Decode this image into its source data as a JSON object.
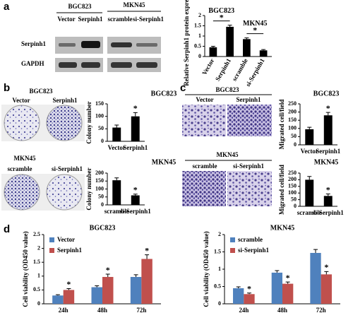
{
  "panel_labels": [
    "a",
    "b",
    "c",
    "d"
  ],
  "blot": {
    "groups": [
      {
        "title": "BGC823",
        "lanes": [
          "Vector",
          "Serpinh1"
        ]
      },
      {
        "title": "MKN45",
        "lanes": [
          "scramble",
          "si-Serpinh1"
        ]
      }
    ],
    "rows": [
      "Serpinh1",
      "GAPDH"
    ]
  },
  "colony": {
    "groups": [
      {
        "title": "BGC823",
        "lanes": [
          "Vector",
          "Serpinh1"
        ]
      },
      {
        "title": "MKN45",
        "lanes": [
          "scramble",
          "si-Serpinh1"
        ]
      }
    ]
  },
  "migration": {
    "groups": [
      {
        "title": "BGC823",
        "lanes": [
          "Vector",
          "Serpinh1"
        ]
      },
      {
        "title": "MKN45",
        "lanes": [
          "scramble",
          "si-Serpinh1"
        ]
      }
    ]
  },
  "chart_data": [
    {
      "type": "bar",
      "y_label": "Relative Serpinh1 protein expression",
      "categories": [
        "Vector",
        "Serpinh1",
        "scramble",
        "si-Serpinh1"
      ],
      "values": [
        0.45,
        1.45,
        0.85,
        0.3
      ],
      "errors": [
        0.05,
        0.08,
        0.06,
        0.04
      ],
      "color": "#000000",
      "ylim": [
        0,
        2
      ],
      "yticks": [
        0,
        0.5,
        1,
        1.5,
        2
      ],
      "group_labels": [
        {
          "text": "BGC823",
          "indices": [
            0,
            1
          ]
        },
        {
          "text": "MKN45",
          "indices": [
            2,
            3
          ]
        }
      ],
      "annotations": [
        {
          "text": "*",
          "indices": [
            0,
            1
          ]
        },
        {
          "text": "*",
          "indices": [
            2,
            3
          ]
        }
      ]
    },
    {
      "type": "bar",
      "title": "BGC823",
      "y_label": "Colony number",
      "categories": [
        "Vector",
        "Serpinh1"
      ],
      "values": [
        55,
        100
      ],
      "errors": [
        10,
        15
      ],
      "color": "#000000",
      "ylim": [
        0,
        150
      ],
      "yticks": [
        0,
        50,
        100,
        150
      ],
      "annotations": [
        {
          "text": "*",
          "index": 1
        }
      ]
    },
    {
      "type": "bar",
      "title": "MKN45",
      "y_label": "Colony number",
      "categories": [
        "scramble",
        "si-Serpinh1"
      ],
      "values": [
        155,
        60
      ],
      "errors": [
        15,
        8
      ],
      "color": "#000000",
      "ylim": [
        0,
        200
      ],
      "yticks": [
        0,
        50,
        100,
        150,
        200
      ],
      "annotations": [
        {
          "text": "*",
          "index": 1
        }
      ]
    },
    {
      "type": "bar",
      "title": "BGC823",
      "y_label": "Migrated cell/field",
      "categories": [
        "Vector",
        "Serpinh1"
      ],
      "values": [
        95,
        180
      ],
      "errors": [
        12,
        18
      ],
      "color": "#000000",
      "ylim": [
        0,
        250
      ],
      "yticks": [
        0,
        50,
        100,
        150,
        200,
        250
      ],
      "annotations": [
        {
          "text": "*",
          "index": 1
        }
      ]
    },
    {
      "type": "bar",
      "title": "MKN45",
      "y_label": "Migrated cell/field",
      "categories": [
        "scramble",
        "si-Serpinh1"
      ],
      "values": [
        200,
        78
      ],
      "errors": [
        25,
        15
      ],
      "color": "#000000",
      "ylim": [
        0,
        250
      ],
      "yticks": [
        0,
        50,
        100,
        150,
        200,
        250
      ],
      "annotations": [
        {
          "text": "*",
          "index": 1
        }
      ]
    },
    {
      "type": "bar",
      "title": "BGC823",
      "y_label": "Cell viability (OD450 value)",
      "categories": [
        "24h",
        "48h",
        "72h"
      ],
      "legend": "upper left",
      "ylim": [
        0,
        2.5
      ],
      "yticks": [
        0,
        0.5,
        1,
        1.5,
        2,
        2.5
      ],
      "series": [
        {
          "name": "Vector",
          "color": "#4f81bd",
          "values": [
            0.3,
            0.6,
            0.97
          ],
          "errors": [
            0.03,
            0.05,
            0.08
          ]
        },
        {
          "name": "Serpinh1",
          "color": "#c0504d",
          "values": [
            0.5,
            0.97,
            1.62
          ],
          "errors": [
            0.05,
            0.1,
            0.15
          ]
        }
      ],
      "annotations": [
        {
          "text": "*",
          "series": 1,
          "index": 0
        },
        {
          "text": "*",
          "series": 1,
          "index": 1
        },
        {
          "text": "*",
          "series": 1,
          "index": 2
        }
      ]
    },
    {
      "type": "bar",
      "title": "MKN45",
      "y_label": "Cell viability (OD450 value)",
      "categories": [
        "24h",
        "48h",
        "72h"
      ],
      "legend": "upper left",
      "ylim": [
        0,
        2
      ],
      "yticks": [
        0,
        0.5,
        1,
        1.5,
        2
      ],
      "series": [
        {
          "name": "scramble",
          "color": "#4f81bd",
          "values": [
            0.45,
            0.9,
            1.47
          ],
          "errors": [
            0.04,
            0.06,
            0.1
          ]
        },
        {
          "name": "si-Serpinh1",
          "color": "#c0504d",
          "values": [
            0.28,
            0.58,
            0.85
          ],
          "errors": [
            0.03,
            0.05,
            0.08
          ]
        }
      ],
      "annotations": [
        {
          "text": "*",
          "series": 1,
          "index": 0
        },
        {
          "text": "*",
          "series": 1,
          "index": 1
        },
        {
          "text": "*",
          "series": 1,
          "index": 2
        }
      ]
    }
  ]
}
